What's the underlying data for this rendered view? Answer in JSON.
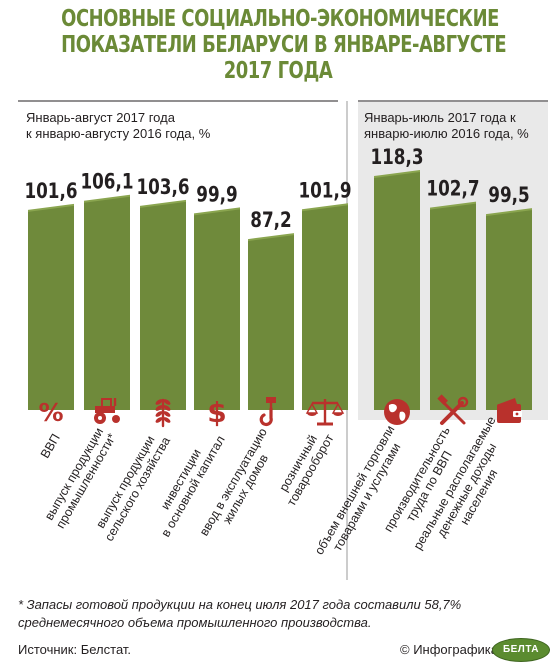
{
  "title_lines": [
    "ОСНОВНЫЕ СОЦИАЛЬНО-ЭКОНОМИЧЕСКИЕ",
    "ПОКАЗАТЕЛИ БЕЛАРУСИ В ЯНВАРЕ-АВГУСТЕ",
    "2017 ГОДА"
  ],
  "left_caption": [
    "Январь-август 2017 года",
    "к январю-августу 2016 года, %"
  ],
  "right_caption": [
    "Январь-июль 2017 года к",
    "январю-июлю 2016 года, %"
  ],
  "colors": {
    "bar": "#6f8a3b",
    "bar_top": "#8aa54f",
    "icon": "#b9312c",
    "title": "#6b8a37",
    "panel": "#e9e9e9"
  },
  "chart_data": {
    "type": "bar",
    "groups": [
      {
        "caption": "Январь-август 2017 года к январю-августу 2016 года, %",
        "bars": [
          {
            "label": "ВВП",
            "value": 101.6,
            "value_text": "101,6",
            "icon": "percent-icon"
          },
          {
            "label": "выпуск продукции промышленности*",
            "value": 106.1,
            "value_text": "106,1",
            "icon": "tractor-icon"
          },
          {
            "label": "выпуск продукции сельского хозяйства",
            "value": 103.6,
            "value_text": "103,6",
            "icon": "wheat-icon"
          },
          {
            "label": "инвестиции в основной капитал",
            "value": 99.9,
            "value_text": "99,9",
            "icon": "dollar-icon"
          },
          {
            "label": "ввод в эксплуатацию жилых домов",
            "value": 87.2,
            "value_text": "87,2",
            "icon": "crane-hook-icon"
          },
          {
            "label": "розничный товарооборот",
            "value": 101.9,
            "value_text": "101,9",
            "icon": "scales-icon"
          }
        ]
      },
      {
        "caption": "Январь-июль 2017 года к январю-июлю 2016 года, %",
        "bars": [
          {
            "label": "объем внешней торговли товарами и услугами",
            "value": 118.3,
            "value_text": "118,3",
            "icon": "globe-icon"
          },
          {
            "label": "производительность труда по ВВП",
            "value": 102.7,
            "value_text": "102,7",
            "icon": "tools-icon"
          },
          {
            "label": "реальные располагаемые денежные доходы населения",
            "value": 99.5,
            "value_text": "99,5",
            "icon": "wallet-icon"
          }
        ]
      }
    ]
  },
  "label_lines": [
    [
      "ВВП"
    ],
    [
      "выпуск продукции",
      "промышленности*"
    ],
    [
      "выпуск продукции",
      "сельского хозяйства"
    ],
    [
      "инвестиции",
      "в основной капитал"
    ],
    [
      "ввод в эксплуатацию",
      "жилых домов"
    ],
    [
      "розничный",
      "товарооборот"
    ],
    [
      "объем внешней торговли",
      "товарами и услугами"
    ],
    [
      "производительность",
      "труда по ВВП"
    ],
    [
      "реальные располагаемые",
      "денежные доходы",
      "населения"
    ]
  ],
  "footnote": [
    "* Запасы готовой продукции на конец июля 2017 года составили 58,7%",
    "среднемесячного объема промышленного производства."
  ],
  "source": "Источник: Белстат.",
  "credit": "© Инфографика",
  "logo_text": "БЕЛТА"
}
